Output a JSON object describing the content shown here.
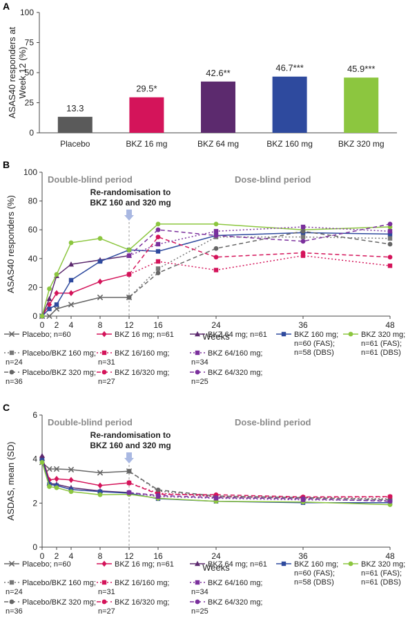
{
  "chart_data": [
    {
      "panel": "A",
      "type": "bar",
      "ylabel_lines": [
        "ASAS40 responders at",
        "Week 12 (%)"
      ],
      "ylim": [
        0,
        100
      ],
      "yticks": [
        "0",
        "25",
        "50",
        "75",
        "100"
      ],
      "categories": [
        "Placebo",
        "BKZ 16 mg",
        "BKZ 64 mg",
        "BKZ 160 mg",
        "BKZ 320 mg"
      ],
      "values": [
        13.3,
        29.5,
        42.6,
        46.7,
        45.9
      ],
      "data_labels": [
        "13.3",
        "29.5*",
        "42.6**",
        "46.7***",
        "45.9***"
      ],
      "colors": [
        "#5a5a5a",
        "#d4145a",
        "#5c2a6e",
        "#2e4a9e",
        "#8cc63f"
      ]
    },
    {
      "panel": "B",
      "type": "line",
      "ylabel": "ASAS40 responders (%)",
      "xlabel": "Weeks",
      "ylim": [
        0,
        100
      ],
      "yticks": [
        "0",
        "20",
        "40",
        "60",
        "80",
        "100"
      ],
      "xticks": [
        "0",
        "2",
        "4",
        "8",
        "12",
        "16",
        "24",
        "36",
        "48"
      ],
      "xtick_values": [
        0,
        2,
        4,
        8,
        12,
        16,
        24,
        36,
        48
      ],
      "period_left": "Double-blind period",
      "period_right": "Dose-blind period",
      "rerandom_lines": [
        "Re-randomisation to",
        "BKZ 160 and 320 mg"
      ],
      "series": [
        {
          "name": "Placebo; n=60",
          "color": "#666666",
          "dash": "",
          "marker": "x",
          "x": [
            0,
            1,
            2,
            4,
            8,
            12
          ],
          "y": [
            0,
            0,
            5,
            8,
            13,
            13
          ]
        },
        {
          "name": "BKZ 16 mg; n=61",
          "color": "#d4145a",
          "dash": "",
          "marker": "diamond",
          "x": [
            0,
            1,
            2,
            4,
            8,
            12
          ],
          "y": [
            0,
            8,
            16,
            16,
            24,
            29
          ]
        },
        {
          "name": "BKZ 64 mg; n=61",
          "color": "#5c2a6e",
          "dash": "",
          "marker": "triangle",
          "x": [
            0,
            1,
            2,
            4,
            8,
            12
          ],
          "y": [
            0,
            12,
            28,
            36,
            39,
            42
          ]
        },
        {
          "name": "BKZ 160 mg; n=60 (FAS); n=58 (DBS)",
          "color": "#2e4a9e",
          "dash": "",
          "marker": "square",
          "x": [
            0,
            1,
            2,
            4,
            8,
            12,
            16,
            24,
            36,
            48
          ],
          "y": [
            0,
            5,
            8,
            25,
            38,
            46,
            45,
            56,
            58,
            57
          ]
        },
        {
          "name": "BKZ 320 mg; n=61 (FAS); n=61 (DBS)",
          "color": "#8cc63f",
          "dash": "",
          "marker": "circle",
          "x": [
            0,
            1,
            2,
            4,
            8,
            12,
            16,
            24,
            36,
            48
          ],
          "y": [
            0,
            19,
            29,
            51,
            54,
            46,
            64,
            64,
            60,
            62
          ]
        },
        {
          "name": "Placebo/BKZ 160 mg; n=24",
          "color": "#777777",
          "dash": "2,3",
          "marker": "square",
          "x": [
            12,
            16,
            24,
            36,
            48
          ],
          "y": [
            13,
            33,
            55,
            55,
            54
          ]
        },
        {
          "name": "BKZ 16/160 mg; n=31",
          "color": "#d4145a",
          "dash": "2,3",
          "marker": "square",
          "x": [
            12,
            16,
            24,
            36,
            48
          ],
          "y": [
            29,
            38,
            32,
            42,
            35
          ]
        },
        {
          "name": "BKZ 64/160 mg; n=34",
          "color": "#7a2f9c",
          "dash": "2,3",
          "marker": "square",
          "x": [
            12,
            16,
            24,
            36,
            48
          ],
          "y": [
            42,
            50,
            59,
            62,
            59
          ]
        },
        {
          "name": "Placebo/BKZ 320 mg; n=36",
          "color": "#666666",
          "dash": "6,4",
          "marker": "circle",
          "x": [
            12,
            16,
            24,
            36,
            48
          ],
          "y": [
            13,
            30,
            47,
            59,
            50
          ]
        },
        {
          "name": "BKZ 16/320 mg; n=27",
          "color": "#d4145a",
          "dash": "6,4",
          "marker": "circle",
          "x": [
            12,
            16,
            24,
            36,
            48
          ],
          "y": [
            29,
            55,
            41,
            44,
            41
          ]
        },
        {
          "name": "BKZ 64/320 mg; n=25",
          "color": "#7a2f9c",
          "dash": "6,4",
          "marker": "circle",
          "x": [
            12,
            16,
            24,
            36,
            48
          ],
          "y": [
            42,
            60,
            56,
            52,
            64
          ]
        }
      ],
      "legend": [
        [
          "Placebo; n=60",
          ""
        ],
        [
          "BKZ 16 mg; n=61",
          ""
        ],
        [
          "BKZ 64 mg; n=61",
          ""
        ],
        [
          "BKZ 160 mg;",
          "n=60 (FAS);",
          "n=58 (DBS)"
        ],
        [
          "BKZ 320 mg;",
          "n=61 (FAS);",
          "n=61 (DBS)"
        ],
        [
          "Placebo/BKZ 160 mg;",
          "n=24"
        ],
        [
          "BKZ 16/160 mg;",
          "n=31"
        ],
        [
          "BKZ 64/160 mg;",
          "n=34"
        ],
        [
          "Placebo/BKZ 320 mg;",
          "n=36"
        ],
        [
          "BKZ 16/320 mg;",
          "n=27"
        ],
        [
          "BKZ 64/320 mg;",
          "n=25"
        ]
      ]
    },
    {
      "panel": "C",
      "type": "line",
      "ylabel": "ASDAS, mean (SD)",
      "xlabel": "Weeks",
      "ylim": [
        0,
        6
      ],
      "yticks": [
        "0",
        "2",
        "4",
        "6"
      ],
      "xticks": [
        "0",
        "2",
        "4",
        "8",
        "12",
        "16",
        "24",
        "36",
        "48"
      ],
      "xtick_values": [
        0,
        2,
        4,
        8,
        12,
        16,
        24,
        36,
        48
      ],
      "period_left": "Double-blind period",
      "period_right": "Dose-blind period",
      "rerandom_lines": [
        "Re-randomisation to",
        "BKZ 160 and 320 mg"
      ],
      "series": [
        {
          "name": "Placebo; n=60",
          "color": "#666666",
          "dash": "",
          "marker": "x",
          "x": [
            0,
            1,
            2,
            4,
            8,
            12
          ],
          "y": [
            3.85,
            3.55,
            3.55,
            3.52,
            3.38,
            3.45
          ]
        },
        {
          "name": "BKZ 16 mg; n=61",
          "color": "#d4145a",
          "dash": "",
          "marker": "diamond",
          "x": [
            0,
            1,
            2,
            4,
            8,
            12
          ],
          "y": [
            4.1,
            3.05,
            3.1,
            3.05,
            2.8,
            2.92
          ]
        },
        {
          "name": "BKZ 64 mg; n=61",
          "color": "#5c2a6e",
          "dash": "",
          "marker": "triangle",
          "x": [
            0,
            1,
            2,
            4,
            8,
            12
          ],
          "y": [
            4.15,
            2.9,
            2.85,
            2.7,
            2.55,
            2.48
          ]
        },
        {
          "name": "BKZ 160 mg; n=60 (FAS); n=58 (DBS)",
          "color": "#2e4a9e",
          "dash": "",
          "marker": "square",
          "x": [
            0,
            1,
            2,
            4,
            8,
            12,
            16,
            24,
            36,
            48
          ],
          "y": [
            3.95,
            2.85,
            2.8,
            2.62,
            2.52,
            2.45,
            2.2,
            2.08,
            2.02,
            2.02
          ]
        },
        {
          "name": "BKZ 320 mg; n=61 (FAS); n=61 (DBS)",
          "color": "#8cc63f",
          "dash": "",
          "marker": "circle",
          "x": [
            0,
            1,
            2,
            4,
            8,
            12,
            16,
            24,
            36,
            48
          ],
          "y": [
            3.85,
            2.75,
            2.7,
            2.52,
            2.38,
            2.4,
            2.22,
            2.08,
            2.05,
            1.93
          ]
        },
        {
          "name": "Placebo/BKZ 160 mg; n=24",
          "color": "#777777",
          "dash": "2,3",
          "marker": "square",
          "x": [
            12,
            16,
            24,
            36,
            48
          ],
          "y": [
            3.45,
            2.55,
            2.28,
            2.22,
            2.2
          ]
        },
        {
          "name": "BKZ 16/160 mg; n=31",
          "color": "#d4145a",
          "dash": "2,3",
          "marker": "square",
          "x": [
            12,
            16,
            24,
            36,
            48
          ],
          "y": [
            2.92,
            2.45,
            2.3,
            2.25,
            2.28
          ]
        },
        {
          "name": "BKZ 64/160 mg; n=34",
          "color": "#7a2f9c",
          "dash": "2,3",
          "marker": "square",
          "x": [
            12,
            16,
            24,
            36,
            48
          ],
          "y": [
            2.48,
            2.3,
            2.22,
            2.15,
            2.12
          ]
        },
        {
          "name": "Placebo/BKZ 320 mg; n=36",
          "color": "#666666",
          "dash": "6,4",
          "marker": "circle",
          "x": [
            12,
            16,
            24,
            36,
            48
          ],
          "y": [
            3.45,
            2.6,
            2.32,
            2.25,
            2.15
          ]
        },
        {
          "name": "BKZ 16/320 mg; n=27",
          "color": "#d4145a",
          "dash": "6,4",
          "marker": "circle",
          "x": [
            12,
            16,
            24,
            36,
            48
          ],
          "y": [
            2.92,
            2.4,
            2.38,
            2.28,
            2.3
          ]
        },
        {
          "name": "BKZ 64/320 mg; n=25",
          "color": "#7a2f9c",
          "dash": "6,4",
          "marker": "circle",
          "x": [
            12,
            16,
            24,
            36,
            48
          ],
          "y": [
            2.48,
            2.35,
            2.25,
            2.2,
            2.08
          ]
        }
      ],
      "legend": [
        [
          "Placebo; n=60",
          ""
        ],
        [
          "BKZ 16 mg; n=61",
          ""
        ],
        [
          "BKZ 64 mg; n=61",
          ""
        ],
        [
          "BKZ 160 mg;",
          "n=60 (FAS);",
          "n=58 (DBS)"
        ],
        [
          "BKZ 320 mg;",
          "n=61 (FAS);",
          "n=61 (DBS)"
        ],
        [
          "Placebo/BKZ 160 mg;",
          "n=24"
        ],
        [
          "BKZ 16/160 mg;",
          "n=31"
        ],
        [
          "BKZ 64/160 mg;",
          "n=34"
        ],
        [
          "Placebo/BKZ 320 mg;",
          "n=36"
        ],
        [
          "BKZ 16/320 mg;",
          "n=27"
        ],
        [
          "BKZ 64/320 mg;",
          "n=25"
        ]
      ]
    }
  ]
}
